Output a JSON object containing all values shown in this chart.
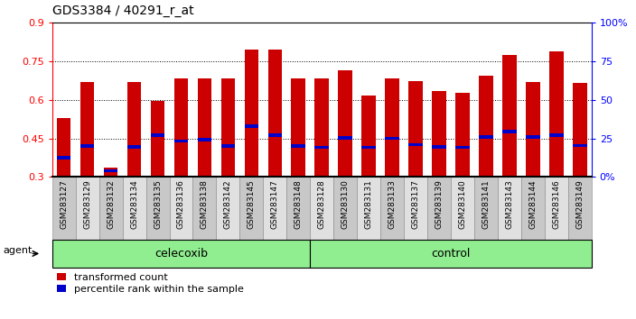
{
  "title": "GDS3384 / 40291_r_at",
  "samples": [
    "GSM283127",
    "GSM283129",
    "GSM283132",
    "GSM283134",
    "GSM283135",
    "GSM283136",
    "GSM283138",
    "GSM283142",
    "GSM283145",
    "GSM283147",
    "GSM283148",
    "GSM283128",
    "GSM283130",
    "GSM283131",
    "GSM283133",
    "GSM283137",
    "GSM283139",
    "GSM283140",
    "GSM283141",
    "GSM283143",
    "GSM283144",
    "GSM283146",
    "GSM283149"
  ],
  "red_values": [
    0.53,
    0.668,
    0.335,
    0.668,
    0.595,
    0.682,
    0.682,
    0.682,
    0.796,
    0.796,
    0.682,
    0.682,
    0.715,
    0.615,
    0.682,
    0.672,
    0.632,
    0.625,
    0.692,
    0.775,
    0.668,
    0.786,
    0.665
  ],
  "blue_values": [
    0.375,
    0.42,
    0.325,
    0.417,
    0.462,
    0.44,
    0.445,
    0.42,
    0.497,
    0.462,
    0.42,
    0.415,
    0.452,
    0.416,
    0.451,
    0.425,
    0.417,
    0.416,
    0.456,
    0.476,
    0.455,
    0.462,
    0.422
  ],
  "bar_color": "#CC0000",
  "dot_color": "#0000CC",
  "ylim": [
    0.3,
    0.9
  ],
  "yticks": [
    0.3,
    0.45,
    0.6,
    0.75,
    0.9
  ],
  "yticklabels": [
    "0.3",
    "0.45",
    "0.6",
    "0.75",
    "0.9"
  ],
  "y2ticks": [
    0,
    25,
    50,
    75,
    100
  ],
  "y2ticklabels": [
    "0%",
    "25",
    "50",
    "75",
    "100%"
  ],
  "celecoxib_count": 11,
  "control_count": 12,
  "legend_red": "transformed count",
  "legend_blue": "percentile rank within the sample",
  "title_fontsize": 10,
  "tick_label_color_even": "#c8c8c8",
  "tick_label_color_odd": "#e0e0e0"
}
